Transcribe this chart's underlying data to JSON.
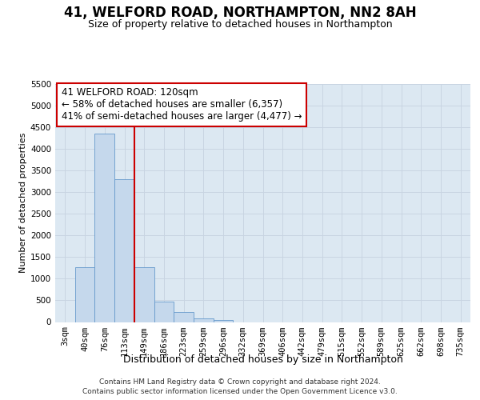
{
  "title": "41, WELFORD ROAD, NORTHAMPTON, NN2 8AH",
  "subtitle": "Size of property relative to detached houses in Northampton",
  "xlabel": "Distribution of detached houses by size in Northampton",
  "ylabel": "Number of detached properties",
  "footer_line1": "Contains HM Land Registry data © Crown copyright and database right 2024.",
  "footer_line2": "Contains public sector information licensed under the Open Government Licence v3.0.",
  "annotation_line1": "41 WELFORD ROAD: 120sqm",
  "annotation_line2": "← 58% of detached houses are smaller (6,357)",
  "annotation_line3": "41% of semi-detached houses are larger (4,477) →",
  "bar_color": "#c5d8ec",
  "bar_edge_color": "#6699cc",
  "vline_color": "#cc0000",
  "vline_position": 3.5,
  "categories": [
    "3sqm",
    "40sqm",
    "76sqm",
    "113sqm",
    "149sqm",
    "186sqm",
    "223sqm",
    "259sqm",
    "296sqm",
    "332sqm",
    "369sqm",
    "406sqm",
    "442sqm",
    "479sqm",
    "515sqm",
    "552sqm",
    "589sqm",
    "625sqm",
    "662sqm",
    "698sqm",
    "735sqm"
  ],
  "values": [
    0,
    1275,
    4350,
    3300,
    1275,
    475,
    235,
    85,
    55,
    0,
    0,
    0,
    0,
    0,
    0,
    0,
    0,
    0,
    0,
    0,
    0
  ],
  "ylim": [
    0,
    5500
  ],
  "yticks": [
    0,
    500,
    1000,
    1500,
    2000,
    2500,
    3000,
    3500,
    4000,
    4500,
    5000,
    5500
  ],
  "grid_color": "#c8d4e2",
  "background_color": "#dce8f2",
  "ann_fontsize": 8.5,
  "title_fontsize": 12,
  "subtitle_fontsize": 9,
  "xlabel_fontsize": 9,
  "ylabel_fontsize": 8,
  "tick_fontsize": 7.5,
  "footer_fontsize": 6.5
}
